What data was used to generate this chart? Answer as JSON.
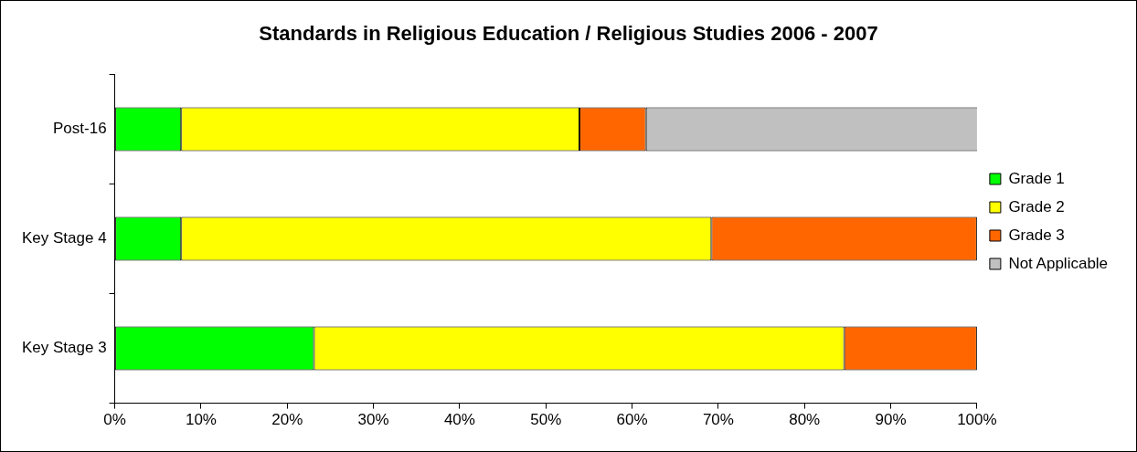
{
  "chart_data": {
    "type": "bar",
    "orientation": "horizontal",
    "stacked": true,
    "title": "Standards in Religious Education / Religious Studies 2006 - 2007",
    "categories": [
      "Post-16",
      "Key Stage 4",
      "Key Stage 3"
    ],
    "series": [
      {
        "name": "Grade 1",
        "color": "#00ff00",
        "values": [
          7.7,
          7.7,
          23.1
        ]
      },
      {
        "name": "Grade 2",
        "color": "#ffff00",
        "values": [
          46.2,
          61.5,
          61.5
        ]
      },
      {
        "name": "Grade 3",
        "color": "#ff6600",
        "values": [
          7.7,
          30.8,
          15.4
        ]
      },
      {
        "name": "Not Applicable",
        "color": "#c0c0c0",
        "values": [
          38.5,
          0,
          0
        ]
      }
    ],
    "xlim": [
      0,
      100
    ],
    "xticks": [
      {
        "value": 0,
        "label": "0%"
      },
      {
        "value": 10,
        "label": "10%"
      },
      {
        "value": 20,
        "label": "20%"
      },
      {
        "value": 30,
        "label": "30%"
      },
      {
        "value": 40,
        "label": "40%"
      },
      {
        "value": 50,
        "label": "50%"
      },
      {
        "value": 60,
        "label": "60%"
      },
      {
        "value": 70,
        "label": "70%"
      },
      {
        "value": 80,
        "label": "80%"
      },
      {
        "value": 90,
        "label": "90%"
      },
      {
        "value": 100,
        "label": "100%"
      }
    ],
    "grid": false,
    "legend": "right"
  }
}
